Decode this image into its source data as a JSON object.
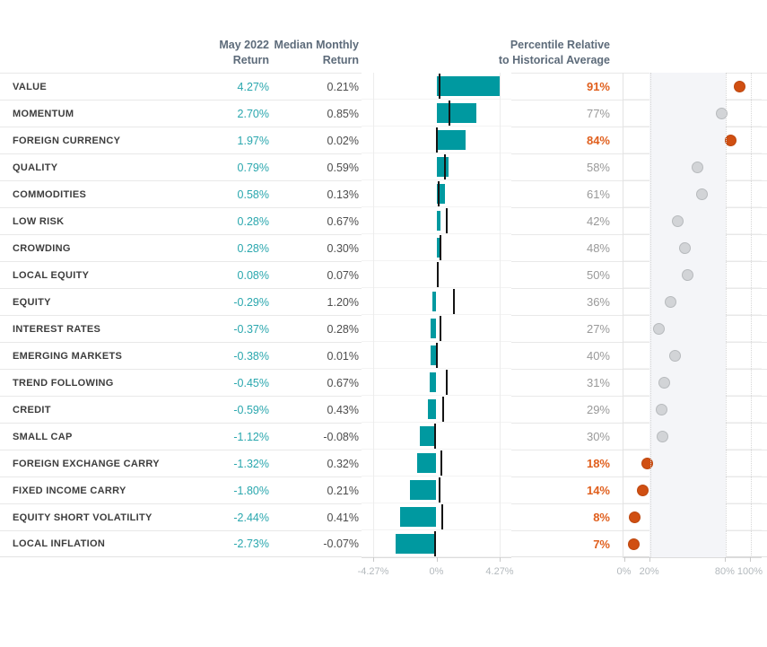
{
  "header": {
    "may_line1": "May 2022",
    "may_line2": "Return",
    "median_line1": "Median Monthly",
    "median_line2": "Return",
    "pct_line1": "Percentile Relative",
    "pct_line2": "to Historical Average"
  },
  "colors": {
    "bar_teal": "#0099a0",
    "teal_text": "#2aa7ae",
    "orange_dot": "#d04f12",
    "orange_text": "#e05f1d",
    "gray_dot": "#d2d4d7",
    "median_tick": "#141414",
    "band_gray": "#f4f5f8"
  },
  "chart_data": {
    "type": "bar",
    "description": "Factor returns for May 2022: horizontal bar chart of monthly return with median-return tick marks, plus dot plot of percentile relative to historical average",
    "bar_axis": {
      "min": -4.27,
      "max": 4.27,
      "ticks": [
        {
          "label": "-4.27%",
          "value": -4.27
        },
        {
          "label": "0%",
          "value": 0
        },
        {
          "label": "4.27%",
          "value": 4.27
        }
      ]
    },
    "pct_axis": {
      "min": 0,
      "max": 100,
      "band": [
        20,
        80
      ],
      "grid_dotted": [
        20,
        80,
        100
      ],
      "ticks": [
        {
          "label": "0%",
          "value": 0
        },
        {
          "label": "20%",
          "value": 20
        },
        {
          "label": "80%",
          "value": 80
        },
        {
          "label": "100%",
          "value": 100
        }
      ]
    },
    "rows": [
      {
        "label": "VALUE",
        "may": "4.27%",
        "may_value": 4.27,
        "median": "0.21%",
        "median_value": 0.21,
        "percentile": "91%",
        "percentile_value": 91,
        "highlight": true
      },
      {
        "label": "MOMENTUM",
        "may": "2.70%",
        "may_value": 2.7,
        "median": "0.85%",
        "median_value": 0.85,
        "percentile": "77%",
        "percentile_value": 77,
        "highlight": false
      },
      {
        "label": "FOREIGN CURRENCY",
        "may": "1.97%",
        "may_value": 1.97,
        "median": "0.02%",
        "median_value": 0.02,
        "percentile": "84%",
        "percentile_value": 84,
        "highlight": true
      },
      {
        "label": "QUALITY",
        "may": "0.79%",
        "may_value": 0.79,
        "median": "0.59%",
        "median_value": 0.59,
        "percentile": "58%",
        "percentile_value": 58,
        "highlight": false
      },
      {
        "label": "COMMODITIES",
        "may": "0.58%",
        "may_value": 0.58,
        "median": "0.13%",
        "median_value": 0.13,
        "percentile": "61%",
        "percentile_value": 61,
        "highlight": false
      },
      {
        "label": "LOW RISK",
        "may": "0.28%",
        "may_value": 0.28,
        "median": "0.67%",
        "median_value": 0.67,
        "percentile": "42%",
        "percentile_value": 42,
        "highlight": false
      },
      {
        "label": "CROWDING",
        "may": "0.28%",
        "may_value": 0.28,
        "median": "0.30%",
        "median_value": 0.3,
        "percentile": "48%",
        "percentile_value": 48,
        "highlight": false
      },
      {
        "label": "LOCAL EQUITY",
        "may": "0.08%",
        "may_value": 0.08,
        "median": "0.07%",
        "median_value": 0.07,
        "percentile": "50%",
        "percentile_value": 50,
        "highlight": false
      },
      {
        "label": "EQUITY",
        "may": "-0.29%",
        "may_value": -0.29,
        "median": "1.20%",
        "median_value": 1.2,
        "percentile": "36%",
        "percentile_value": 36,
        "highlight": false
      },
      {
        "label": "INTEREST RATES",
        "may": "-0.37%",
        "may_value": -0.37,
        "median": "0.28%",
        "median_value": 0.28,
        "percentile": "27%",
        "percentile_value": 27,
        "highlight": false
      },
      {
        "label": "EMERGING MARKETS",
        "may": "-0.38%",
        "may_value": -0.38,
        "median": "0.01%",
        "median_value": 0.01,
        "percentile": "40%",
        "percentile_value": 40,
        "highlight": false
      },
      {
        "label": "TREND FOLLOWING",
        "may": "-0.45%",
        "may_value": -0.45,
        "median": "0.67%",
        "median_value": 0.67,
        "percentile": "31%",
        "percentile_value": 31,
        "highlight": false
      },
      {
        "label": "CREDIT",
        "may": "-0.59%",
        "may_value": -0.59,
        "median": "0.43%",
        "median_value": 0.43,
        "percentile": "29%",
        "percentile_value": 29,
        "highlight": false
      },
      {
        "label": "SMALL CAP",
        "may": "-1.12%",
        "may_value": -1.12,
        "median": "-0.08%",
        "median_value": -0.08,
        "percentile": "30%",
        "percentile_value": 30,
        "highlight": false
      },
      {
        "label": "FOREIGN EXCHANGE CARRY",
        "may": "-1.32%",
        "may_value": -1.32,
        "median": "0.32%",
        "median_value": 0.32,
        "percentile": "18%",
        "percentile_value": 18,
        "highlight": true
      },
      {
        "label": "FIXED INCOME CARRY",
        "may": "-1.80%",
        "may_value": -1.8,
        "median": "0.21%",
        "median_value": 0.21,
        "percentile": "14%",
        "percentile_value": 14,
        "highlight": true
      },
      {
        "label": "EQUITY SHORT VOLATILITY",
        "may": "-2.44%",
        "may_value": -2.44,
        "median": "0.41%",
        "median_value": 0.41,
        "percentile": "8%",
        "percentile_value": 8,
        "highlight": true
      },
      {
        "label": "LOCAL INFLATION",
        "may": "-2.73%",
        "may_value": -2.73,
        "median": "-0.07%",
        "median_value": -0.07,
        "percentile": "7%",
        "percentile_value": 7,
        "highlight": true
      }
    ]
  }
}
